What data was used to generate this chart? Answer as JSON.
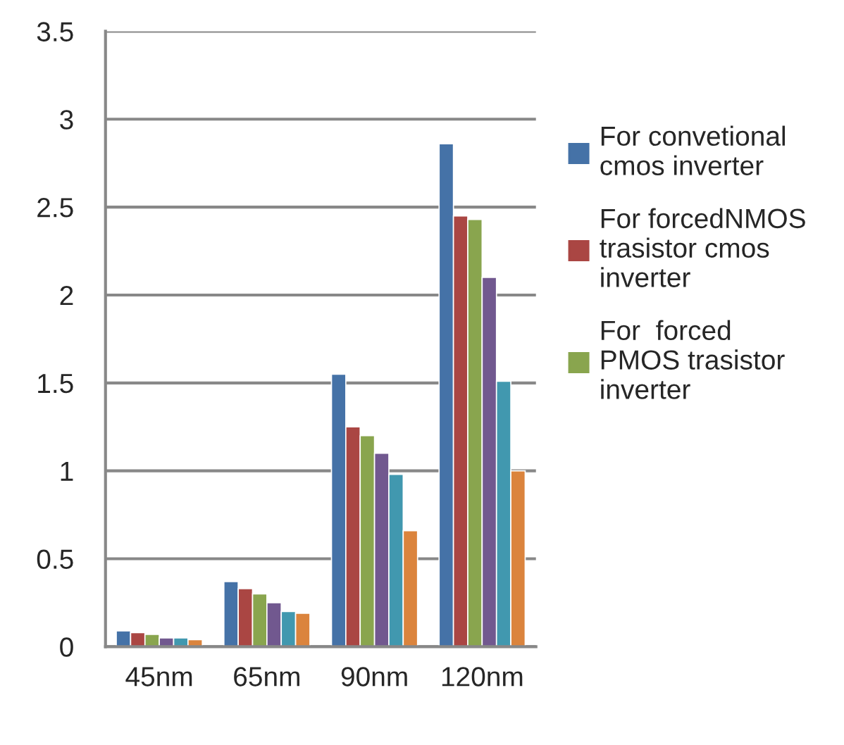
{
  "chart_data": {
    "type": "bar",
    "categories": [
      "45nm",
      "65nm",
      "90nm",
      "120nm"
    ],
    "series": [
      {
        "name": "For convetional cmos inverter",
        "color": "#4572a7",
        "values": [
          0.09,
          0.37,
          1.55,
          2.86
        ]
      },
      {
        "name": "For forcedNMOS trasistor cmos inverter",
        "color": "#aa4643",
        "values": [
          0.08,
          0.33,
          1.25,
          2.45
        ]
      },
      {
        "name": "For  forced PMOS trasistor inverter",
        "color": "#89a54e",
        "values": [
          0.07,
          0.3,
          1.2,
          2.43
        ]
      },
      {
        "color": "#71588f",
        "values": [
          0.05,
          0.25,
          1.1,
          2.1
        ]
      },
      {
        "color": "#4198af",
        "values": [
          0.05,
          0.2,
          0.98,
          1.51
        ]
      },
      {
        "color": "#db843d",
        "values": [
          0.04,
          0.19,
          0.66,
          1.0
        ]
      }
    ],
    "ylim": [
      0,
      3.5
    ],
    "yticks": [
      0,
      0.5,
      1,
      1.5,
      2,
      2.5,
      3,
      3.5
    ],
    "grid": "y",
    "legend": "right"
  }
}
